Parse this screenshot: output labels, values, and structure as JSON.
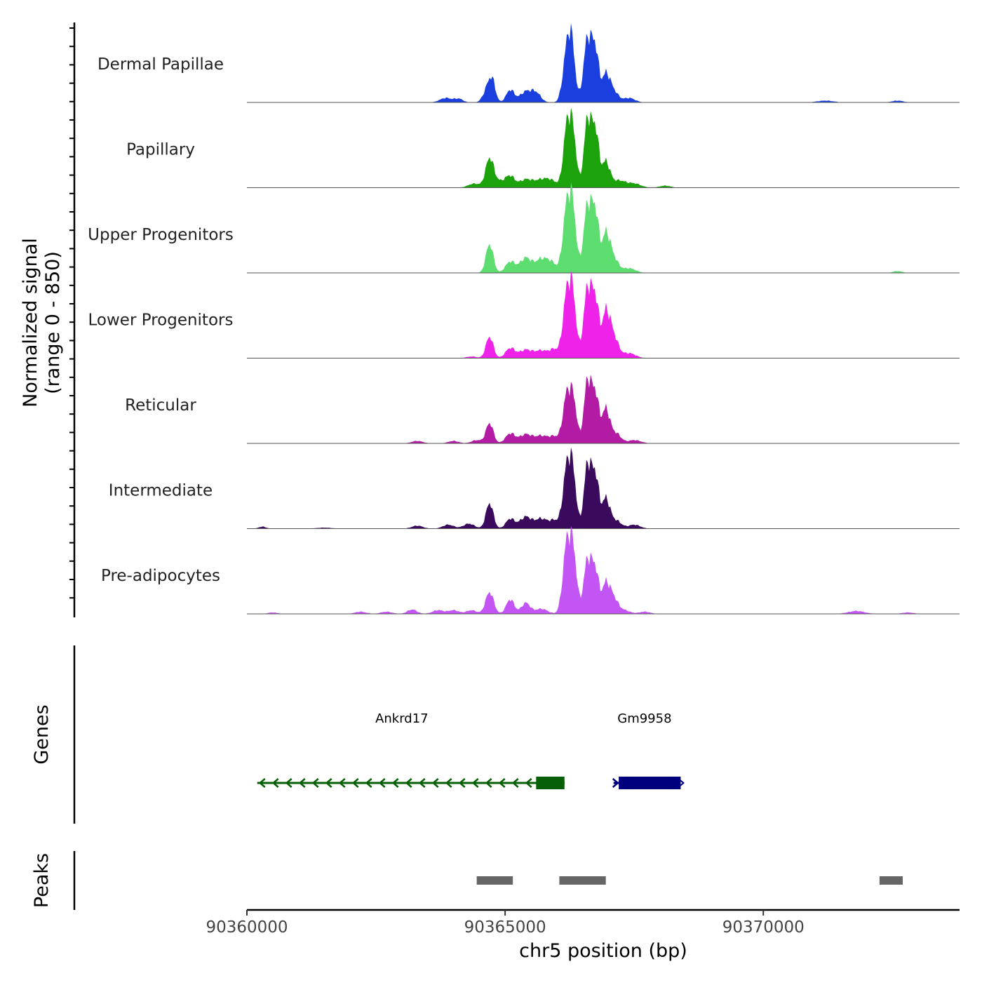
{
  "chart_data": {
    "type": "area",
    "title": "",
    "ylabel_line1": "Normalized signal",
    "ylabel_line2": "(range 0 - 850)",
    "xlabel": "chr5 position (bp)",
    "chromosome": "chr5",
    "xlim": [
      90360000,
      90373800
    ],
    "ylim": [
      0,
      850
    ],
    "x_ticks": [
      90360000,
      90365000,
      90370000
    ],
    "x_tick_labels": [
      "90360000",
      "90365000",
      "90370000"
    ],
    "tracks": [
      {
        "name": "Dermal Papillae",
        "color": "#1a3fde",
        "scale": 0.82,
        "peaks": [
          [
            90363850,
            0.05,
            160
          ],
          [
            90364100,
            0.04,
            120
          ],
          [
            90364650,
            0.14,
            110
          ],
          [
            90364750,
            0.22,
            90
          ],
          [
            90365100,
            0.14,
            110
          ],
          [
            90365400,
            0.12,
            160
          ],
          [
            90365600,
            0.1,
            130
          ],
          [
            90366200,
            0.58,
            110
          ],
          [
            90366300,
            0.48,
            90
          ],
          [
            90366600,
            0.72,
            110
          ],
          [
            90366750,
            0.55,
            90
          ],
          [
            90366950,
            0.3,
            110
          ],
          [
            90367100,
            0.12,
            130
          ],
          [
            90367400,
            0.05,
            160
          ],
          [
            90371200,
            0.02,
            220
          ],
          [
            90372600,
            0.02,
            150
          ]
        ]
      },
      {
        "name": "Papillary",
        "color": "#1ca20b",
        "scale": 0.88,
        "peaks": [
          [
            90364400,
            0.04,
            160
          ],
          [
            90364700,
            0.28,
            110
          ],
          [
            90364900,
            0.06,
            180
          ],
          [
            90365100,
            0.1,
            120
          ],
          [
            90365400,
            0.08,
            180
          ],
          [
            90365700,
            0.07,
            180
          ],
          [
            90365900,
            0.06,
            160
          ],
          [
            90366200,
            0.6,
            100
          ],
          [
            90366320,
            0.48,
            90
          ],
          [
            90366600,
            0.68,
            100
          ],
          [
            90366750,
            0.55,
            90
          ],
          [
            90366950,
            0.25,
            110
          ],
          [
            90367200,
            0.07,
            180
          ],
          [
            90367500,
            0.04,
            180
          ],
          [
            90368100,
            0.02,
            150
          ]
        ]
      },
      {
        "name": "Upper Progenitors",
        "color": "#5ddc70",
        "scale": 0.87,
        "peaks": [
          [
            90364700,
            0.31,
            100
          ],
          [
            90365100,
            0.12,
            130
          ],
          [
            90365400,
            0.16,
            160
          ],
          [
            90365700,
            0.14,
            160
          ],
          [
            90365900,
            0.1,
            140
          ],
          [
            90366200,
            0.72,
            110
          ],
          [
            90366320,
            0.55,
            90
          ],
          [
            90366600,
            0.73,
            110
          ],
          [
            90366750,
            0.6,
            90
          ],
          [
            90366950,
            0.4,
            110
          ],
          [
            90367100,
            0.15,
            130
          ],
          [
            90367400,
            0.05,
            180
          ],
          [
            90372600,
            0.02,
            120
          ]
        ]
      },
      {
        "name": "Lower Progenitors",
        "color": "#ee22e8",
        "scale": 0.9,
        "peaks": [
          [
            90364350,
            0.02,
            140
          ],
          [
            90364700,
            0.26,
            100
          ],
          [
            90365100,
            0.12,
            130
          ],
          [
            90365400,
            0.1,
            170
          ],
          [
            90365700,
            0.09,
            170
          ],
          [
            90365950,
            0.1,
            130
          ],
          [
            90366200,
            0.78,
            110
          ],
          [
            90366320,
            0.6,
            90
          ],
          [
            90366600,
            0.85,
            110
          ],
          [
            90366750,
            0.65,
            90
          ],
          [
            90366950,
            0.52,
            110
          ],
          [
            90367100,
            0.25,
            130
          ],
          [
            90367400,
            0.06,
            180
          ]
        ]
      },
      {
        "name": "Reticular",
        "color": "#b41ba4",
        "scale": 0.81,
        "peaks": [
          [
            90363300,
            0.03,
            150
          ],
          [
            90364000,
            0.03,
            140
          ],
          [
            90364450,
            0.04,
            140
          ],
          [
            90364700,
            0.25,
            100
          ],
          [
            90365100,
            0.12,
            130
          ],
          [
            90365400,
            0.11,
            170
          ],
          [
            90365700,
            0.09,
            170
          ],
          [
            90365950,
            0.08,
            140
          ],
          [
            90366200,
            0.6,
            110
          ],
          [
            90366330,
            0.45,
            90
          ],
          [
            90366600,
            0.78,
            100
          ],
          [
            90366750,
            0.58,
            90
          ],
          [
            90366950,
            0.42,
            110
          ],
          [
            90367150,
            0.12,
            130
          ],
          [
            90367500,
            0.04,
            180
          ]
        ]
      },
      {
        "name": "Intermediate",
        "color": "#3a0a5c",
        "scale": 0.83,
        "peaks": [
          [
            90360300,
            0.02,
            100
          ],
          [
            90361500,
            0.01,
            200
          ],
          [
            90363300,
            0.03,
            150
          ],
          [
            90363900,
            0.04,
            150
          ],
          [
            90364300,
            0.05,
            150
          ],
          [
            90364700,
            0.26,
            100
          ],
          [
            90365100,
            0.1,
            120
          ],
          [
            90365400,
            0.12,
            160
          ],
          [
            90365700,
            0.1,
            160
          ],
          [
            90365950,
            0.08,
            130
          ],
          [
            90366200,
            0.62,
            110
          ],
          [
            90366320,
            0.46,
            90
          ],
          [
            90366600,
            0.66,
            100
          ],
          [
            90366750,
            0.52,
            90
          ],
          [
            90366950,
            0.3,
            110
          ],
          [
            90367150,
            0.08,
            140
          ],
          [
            90367500,
            0.04,
            160
          ]
        ]
      },
      {
        "name": "Pre-adipocytes",
        "color": "#c355f5",
        "scale": 0.91,
        "peaks": [
          [
            90360500,
            0.02,
            120
          ],
          [
            90362200,
            0.03,
            150
          ],
          [
            90362700,
            0.03,
            150
          ],
          [
            90363200,
            0.06,
            130
          ],
          [
            90363700,
            0.05,
            150
          ],
          [
            90364000,
            0.05,
            150
          ],
          [
            90364350,
            0.05,
            140
          ],
          [
            90364700,
            0.3,
            110
          ],
          [
            90365100,
            0.2,
            110
          ],
          [
            90365400,
            0.15,
            120
          ],
          [
            90365700,
            0.07,
            170
          ],
          [
            90366200,
            0.98,
            110
          ],
          [
            90366330,
            0.7,
            90
          ],
          [
            90366600,
            0.75,
            110
          ],
          [
            90366750,
            0.55,
            90
          ],
          [
            90366950,
            0.4,
            110
          ],
          [
            90367100,
            0.2,
            120
          ],
          [
            90367300,
            0.05,
            160
          ],
          [
            90367700,
            0.03,
            150
          ],
          [
            90371800,
            0.04,
            220
          ],
          [
            90372800,
            0.02,
            150
          ]
        ]
      }
    ],
    "genes": [
      {
        "name": "Ankrd17",
        "start": 90360200,
        "end": 90366150,
        "strand": "-",
        "color": "#076007",
        "thick_start": 90365600,
        "thick_end": 90366150,
        "label_x": 90363000
      },
      {
        "name": "Gm9958",
        "start": 90367100,
        "end": 90368400,
        "strand": "+",
        "color": "#00007f",
        "thick_start": 90367200,
        "thick_end": 90368400,
        "label_x": 90367700
      }
    ],
    "peaks": [
      {
        "start": 90364450,
        "end": 90365150,
        "color": "#666666"
      },
      {
        "start": 90366050,
        "end": 90366950,
        "color": "#666666"
      },
      {
        "start": 90372250,
        "end": 90372700,
        "color": "#666666"
      }
    ],
    "panel_labels": {
      "genes": "Genes",
      "peaks": "Peaks"
    }
  }
}
